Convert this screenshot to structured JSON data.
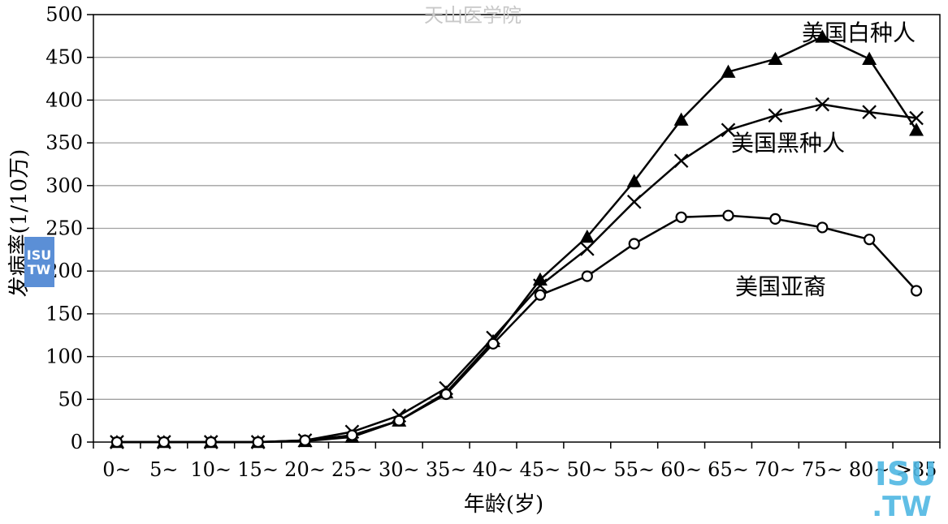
{
  "watermark": {
    "top": "天山医学院",
    "logo_small": "ISU\nTW",
    "logo_big_line1": "ISU",
    "logo_big_line2": ".TW"
  },
  "colors": {
    "line": "#000000",
    "grid": "#a0a0a0",
    "logo_blue": "#5b8fd6",
    "logo_cyan": "#4fb7e3",
    "watermark": "#c8c8c8"
  },
  "chart_data": {
    "type": "line",
    "xlabel": "年龄(岁)",
    "ylabel": "发病率(1/10万)",
    "ylim": [
      0,
      500
    ],
    "yticks": [
      0,
      50,
      100,
      150,
      200,
      250,
      300,
      350,
      400,
      450,
      500
    ],
    "categories": [
      "0~",
      "5~",
      "10~",
      "15~",
      "20~",
      "25~",
      "30~",
      "35~",
      "40~",
      "45~",
      "50~",
      "55~",
      "60~",
      "65~",
      "70~",
      "75~",
      "80~",
      ">85"
    ],
    "grid": "horizontal",
    "series": [
      {
        "name": "美国白种人",
        "marker": "triangle",
        "values": [
          0,
          0,
          0,
          0,
          1,
          6,
          25,
          58,
          118,
          190,
          240,
          305,
          377,
          433,
          448,
          474,
          448,
          365
        ]
      },
      {
        "name": "美国黑种人",
        "marker": "x",
        "values": [
          0,
          0,
          0,
          0,
          2,
          12,
          31,
          63,
          122,
          183,
          226,
          281,
          329,
          365,
          382,
          395,
          386,
          379
        ]
      },
      {
        "name": "美国亚裔",
        "marker": "circle",
        "values": [
          0,
          0,
          0,
          0,
          2,
          8,
          25,
          56,
          115,
          172,
          194,
          232,
          263,
          265,
          261,
          251,
          237,
          177
        ]
      }
    ]
  }
}
